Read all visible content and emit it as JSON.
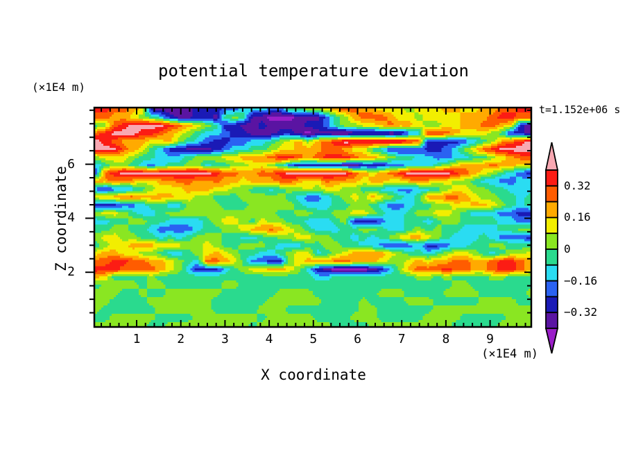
{
  "chart_data": {
    "type": "heatmap",
    "title": "potential temperature deviation",
    "time_annotation": "t=1.152e+06 s",
    "xlabel": "X coordinate",
    "ylabel": "Z coordinate",
    "x_unit_label": "(×1E4 m)",
    "y_unit_label": "(×1E4 m)",
    "x_range": [
      0,
      9.9
    ],
    "y_range": [
      0,
      8.1
    ],
    "x_major_ticks": [
      "1",
      "2",
      "3",
      "4",
      "5",
      "6",
      "7",
      "8",
      "9"
    ],
    "x_minor_step": 0.2,
    "y_major_ticks": [
      "6",
      "4",
      "2"
    ],
    "y_major_tick_values": [
      6,
      4,
      2
    ],
    "y_minor_step": 0.5,
    "grid_on": false,
    "colorbar": {
      "orientation": "vertical",
      "labels": [
        {
          "text": "0.32",
          "boundary": 1
        },
        {
          "text": "0.16",
          "boundary": 3
        },
        {
          "text": "0",
          "boundary": 5
        },
        {
          "text": "−0.16",
          "boundary": 7
        },
        {
          "text": "−0.32",
          "boundary": 9
        }
      ],
      "level_boundaries": [
        0.4,
        0.32,
        0.24,
        0.16,
        0.08,
        0,
        -0.08,
        -0.16,
        -0.24,
        -0.32,
        -0.4
      ]
    },
    "palette": [
      {
        "index": 0,
        "name": "purple",
        "range": "< −0.40",
        "color": "#9a1ec8"
      },
      {
        "index": 1,
        "name": "indigo",
        "range": "−0.40 … −0.32",
        "color": "#5a14a2"
      },
      {
        "index": 2,
        "name": "navy",
        "range": "−0.32 … −0.24",
        "color": "#1a1ab6"
      },
      {
        "index": 3,
        "name": "blue",
        "range": "−0.24 … −0.16",
        "color": "#2a62f2"
      },
      {
        "index": 4,
        "name": "cyan",
        "range": "−0.16 … −0.08",
        "color": "#2adcf2"
      },
      {
        "index": 5,
        "name": "spring-green",
        "range": "−0.08 … 0",
        "color": "#2ada8e"
      },
      {
        "index": 6,
        "name": "chartreuse",
        "range": "0 … 0.08",
        "color": "#8ae622"
      },
      {
        "index": 7,
        "name": "yellow",
        "range": "0.08 … 0.16",
        "color": "#f2ee00"
      },
      {
        "index": 8,
        "name": "orange",
        "range": "0.16 … 0.24",
        "color": "#ffaa00"
      },
      {
        "index": 9,
        "name": "orange-red",
        "range": "0.24 … 0.32",
        "color": "#ff5c00"
      },
      {
        "index": 10,
        "name": "red",
        "range": "0.32 … 0.40",
        "color": "#fc1c14"
      },
      {
        "index": 11,
        "name": "pink",
        "range": "> 0.40",
        "color": "#f8a8b2"
      }
    ],
    "grid_encoding": "Each row = 8 six-char groups, one hex digit per cell = palette index. Row 0 = top of plot (z≈8.1), last row = bottom (z=0); col 0 = x=0, last col = x≈9.9.",
    "grid": [
      [
        "aa9987",
        "211112",
        "223344",
        "433556",
        "678998",
        "877767",
        "778877",
        "8899aa"
      ],
      [
        "998876",
        "542112",
        "215651",
        "100011",
        "135689",
        "998776",
        "777788",
        "89aa99"
      ],
      [
        "569abb",
        "bba987",
        "652211",
        "211112",
        "235667",
        "789887",
        "667788",
        "998721"
      ],
      [
        "9abbba",
        "a98765",
        "443221",
        "112210",
        "110011",
        "110134",
        "aa9877",
        "765221"
      ],
      [
        "ba9888",
        "778654",
        "322334",
        "456786",
        "89abbb",
        "bbbba9",
        "222234",
        "5689ab"
      ],
      [
        "bbb987",
        "542211",
        "123445",
        "567788",
        "899877",
        "542223",
        "223467",
        "9abbbb"
      ],
      [
        "677765",
        "544456",
        "667788",
        "89aa98",
        "9aaa98",
        "876554",
        "433445",
        "567899"
      ],
      [
        "456654",
        "345566",
        "455667",
        "765322",
        "222112",
        "223344",
        "456788",
        "898877"
      ],
      [
        "39abbb",
        "bbbbbb",
        "ba9988",
        "99abbb",
        "bbbb98",
        "789abb",
        "bbba98",
        "765432"
      ],
      [
        "889887",
        "788998",
        "898878",
        "889987",
        "798887",
        "887788",
        "877665",
        "443344"
      ],
      [
        "323345",
        "677788",
        "877665",
        "545667",
        "677665",
        "544334",
        "456776",
        "655444"
      ],
      [
        "788998",
        "888776",
        "655566",
        "666543",
        "345676",
        "876545",
        "889987",
        "665545"
      ],
      [
        "222334",
        "554466",
        "665556",
        "666654",
        "445566",
        "543345",
        "566778",
        "876545"
      ],
      [
        "677654",
        "456666",
        "666666",
        "665566",
        "556677",
        "654456",
        "677654",
        "443322"
      ],
      [
        "445566",
        "554444",
        "567765",
        "766554",
        "445622",
        "234455",
        "456655",
        "554433"
      ],
      [
        "556655",
        "433334",
        "556678",
        "898765",
        "444556",
        "654456",
        "565544",
        "445566"
      ],
      [
        "677665",
        "545456",
        "665544",
        "556677",
        "665545",
        "456788",
        "765444",
        "543332"
      ],
      [
        "567788",
        "877766",
        "765566",
        "654445",
        "566554",
        "432234",
        "223445",
        "566555"
      ],
      [
        "788776",
        "654456",
        "787655",
        "445677",
        "456788",
        "887655",
        "456776",
        "545667"
      ],
      [
        "99aa99",
        "887654",
        "998753",
        "322678",
        "889988",
        "876678",
        "788998",
        "89aa98"
      ],
      [
        "aaa999",
        "987642",
        "224567",
        "788764",
        "210000",
        "124689",
        "99a998",
        "89aa98"
      ],
      [
        "875555",
        "655555",
        "555555",
        "555555",
        "445555",
        "555556",
        "656555",
        "566555"
      ],
      [
        "566665",
        "665555",
        "556655",
        "555555",
        "555555",
        "555555",
        "555665",
        "555555"
      ],
      [
        "666556",
        "556666",
        "665555",
        "556666",
        "555555",
        "566655",
        "556666",
        "555556"
      ],
      [
        "665555",
        "666666",
        "655555",
        "566666",
        "655556",
        "555566",
        "655555",
        "666655"
      ],
      [
        "655555",
        "566666",
        "655555",
        "666555",
        "555556",
        "655555",
        "566666",
        "666666"
      ],
      [
        "556666",
        "655556",
        "666666",
        "566666",
        "555566",
        "655555",
        "666655",
        "555666"
      ],
      [
        "666666",
        "556666",
        "666665",
        "666666",
        "665555",
        "666666",
        "666555",
        "556666"
      ]
    ]
  }
}
